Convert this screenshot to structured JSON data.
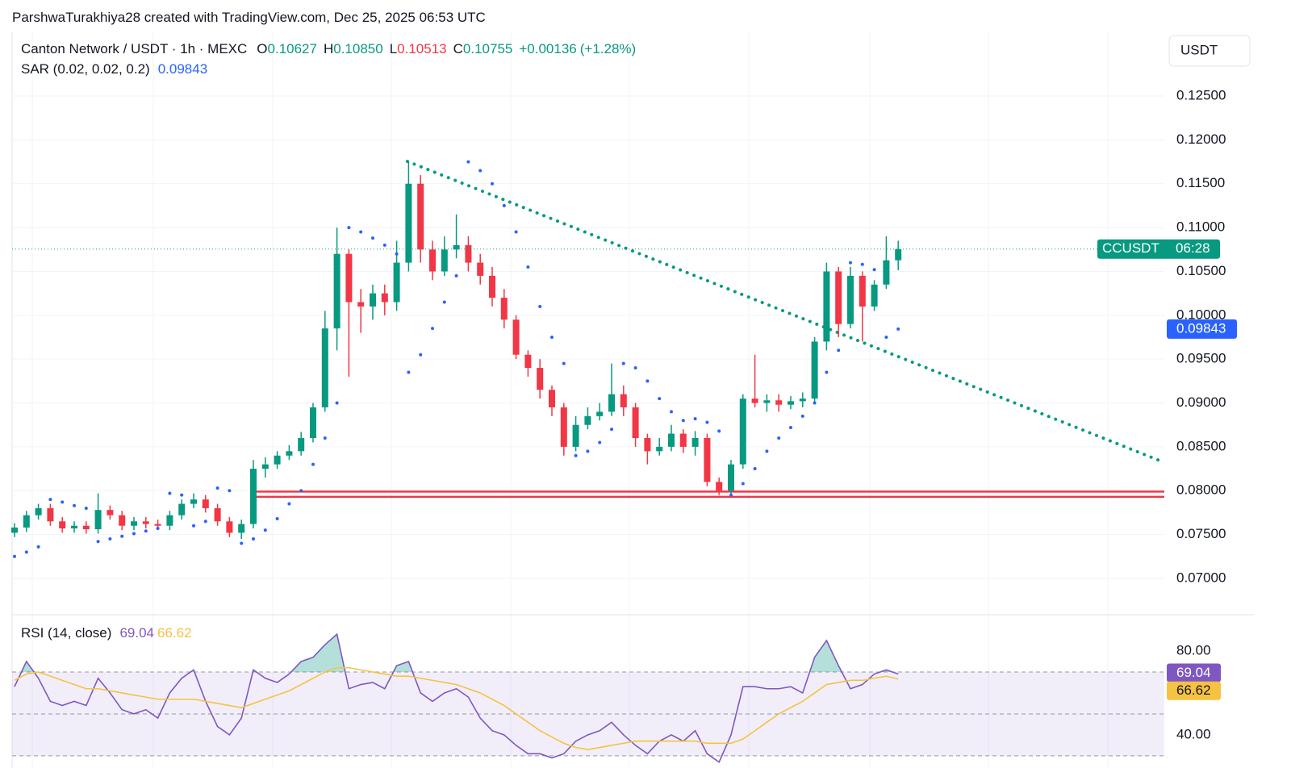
{
  "header": {
    "attribution": "ParshwaTurakhiya28 created with TradingView.com, Dec 25, 2025 06:53 UTC"
  },
  "chart_data": [
    {
      "type": "candlestick",
      "title": "Canton Network / USDT · 1h · MEXC",
      "symbol": "CCUSDT",
      "countdown": "06:28",
      "currency": "USDT",
      "ohlc_legend": [
        {
          "key": "O",
          "value": 0.10627,
          "label": "0.10627"
        },
        {
          "key": "H",
          "value": 0.1085,
          "label": "0.10850"
        },
        {
          "key": "L",
          "value": 0.10513,
          "label": "0.10513"
        },
        {
          "key": "C",
          "value": 0.10755,
          "label": "0.10755"
        }
      ],
      "change": {
        "value": 0.00136,
        "label": "+0.00136"
      },
      "change_pct": {
        "value": 1.28,
        "label": "(+1.28%)"
      },
      "up_color": "#089981",
      "down_color": "#f23645",
      "open": [
        0.0752,
        0.0758,
        0.0772,
        0.078,
        0.0765,
        0.0757,
        0.076,
        0.0756,
        0.0778,
        0.0772,
        0.076,
        0.0765,
        0.0762,
        0.076,
        0.0772,
        0.0785,
        0.079,
        0.078,
        0.0765,
        0.0752,
        0.0762,
        0.0825,
        0.083,
        0.084,
        0.0845,
        0.086,
        0.0895,
        0.0985,
        0.107,
        0.1015,
        0.101,
        0.1025,
        0.1015,
        0.106,
        0.115,
        0.1075,
        0.105,
        0.1075,
        0.108,
        0.106,
        0.1045,
        0.102,
        0.0995,
        0.0955,
        0.094,
        0.0915,
        0.0895,
        0.085,
        0.0875,
        0.0885,
        0.089,
        0.091,
        0.0895,
        0.086,
        0.0845,
        0.085,
        0.0865,
        0.085,
        0.086,
        0.081,
        0.08,
        0.083,
        0.0905,
        0.09,
        0.0903,
        0.0898,
        0.0902,
        0.0905,
        0.097,
        0.105,
        0.099,
        0.1045,
        0.101,
        0.1035,
        0.10627
      ],
      "high": [
        0.0763,
        0.0777,
        0.0785,
        0.0785,
        0.077,
        0.0765,
        0.0765,
        0.0797,
        0.0783,
        0.0777,
        0.077,
        0.077,
        0.0767,
        0.0777,
        0.079,
        0.0797,
        0.0795,
        0.0785,
        0.077,
        0.0767,
        0.0835,
        0.0838,
        0.0845,
        0.0852,
        0.0867,
        0.09,
        0.1005,
        0.11,
        0.1075,
        0.103,
        0.1035,
        0.1035,
        0.1085,
        0.1175,
        0.116,
        0.1085,
        0.109,
        0.1115,
        0.109,
        0.107,
        0.1055,
        0.103,
        0.1,
        0.096,
        0.095,
        0.092,
        0.09,
        0.0885,
        0.0895,
        0.09,
        0.0945,
        0.092,
        0.09,
        0.0865,
        0.086,
        0.0875,
        0.087,
        0.0868,
        0.0865,
        0.0815,
        0.0835,
        0.091,
        0.0955,
        0.091,
        0.091,
        0.0908,
        0.0912,
        0.0975,
        0.106,
        0.1055,
        0.1055,
        0.105,
        0.104,
        0.109,
        0.1085
      ],
      "low": [
        0.0747,
        0.0753,
        0.0767,
        0.076,
        0.0752,
        0.0752,
        0.0751,
        0.0751,
        0.0767,
        0.0755,
        0.0755,
        0.0757,
        0.0755,
        0.0755,
        0.0767,
        0.078,
        0.0775,
        0.076,
        0.0747,
        0.0745,
        0.0757,
        0.0815,
        0.0825,
        0.0835,
        0.084,
        0.0855,
        0.089,
        0.096,
        0.093,
        0.098,
        0.0995,
        0.1,
        0.1005,
        0.105,
        0.106,
        0.104,
        0.1045,
        0.1065,
        0.105,
        0.1035,
        0.101,
        0.0985,
        0.095,
        0.093,
        0.0905,
        0.0885,
        0.084,
        0.0845,
        0.087,
        0.088,
        0.0885,
        0.0885,
        0.085,
        0.083,
        0.084,
        0.0845,
        0.0843,
        0.084,
        0.0805,
        0.0795,
        0.0795,
        0.0825,
        0.0895,
        0.089,
        0.089,
        0.0893,
        0.0895,
        0.09,
        0.096,
        0.0975,
        0.0985,
        0.097,
        0.1005,
        0.103,
        0.10513
      ],
      "close": [
        0.0758,
        0.0772,
        0.078,
        0.0765,
        0.0757,
        0.076,
        0.0756,
        0.0778,
        0.0772,
        0.076,
        0.0765,
        0.0762,
        0.076,
        0.0772,
        0.0785,
        0.079,
        0.078,
        0.0765,
        0.0752,
        0.0762,
        0.0825,
        0.083,
        0.084,
        0.0845,
        0.086,
        0.0895,
        0.0985,
        0.107,
        0.1015,
        0.101,
        0.1025,
        0.1015,
        0.106,
        0.115,
        0.1075,
        0.105,
        0.1075,
        0.108,
        0.106,
        0.1045,
        0.102,
        0.0995,
        0.0955,
        0.094,
        0.0915,
        0.0895,
        0.085,
        0.0875,
        0.0885,
        0.089,
        0.091,
        0.0895,
        0.086,
        0.0845,
        0.085,
        0.0865,
        0.085,
        0.086,
        0.081,
        0.08,
        0.083,
        0.0905,
        0.09,
        0.0903,
        0.0898,
        0.0902,
        0.0905,
        0.097,
        0.105,
        0.099,
        0.1045,
        0.101,
        0.1035,
        0.10627,
        0.10755
      ],
      "sar": {
        "name": "SAR (0.02, 0.02, 0.2)",
        "color": "#2962ff",
        "values": [
          0.0725,
          0.073,
          0.0736,
          0.079,
          0.0787,
          0.0783,
          0.078,
          0.0742,
          0.0745,
          0.0748,
          0.0751,
          0.0754,
          0.0757,
          0.0797,
          0.0795,
          0.076,
          0.0765,
          0.0803,
          0.08,
          0.074,
          0.0745,
          0.0755,
          0.0768,
          0.0785,
          0.08,
          0.083,
          0.086,
          0.09,
          0.11,
          0.1095,
          0.1088,
          0.108,
          0.107,
          0.0935,
          0.0955,
          0.0985,
          0.1015,
          0.1045,
          0.1175,
          0.1165,
          0.115,
          0.1125,
          0.1095,
          0.1055,
          0.101,
          0.0975,
          0.0945,
          0.084,
          0.0845,
          0.0855,
          0.087,
          0.0945,
          0.094,
          0.0925,
          0.0905,
          0.089,
          0.088,
          0.0882,
          0.0878,
          0.0868,
          0.0795,
          0.0808,
          0.0825,
          0.0845,
          0.086,
          0.0872,
          0.0885,
          0.09,
          0.0935,
          0.096,
          0.106,
          0.1058,
          0.1052,
          0.0975,
          0.09843
        ]
      },
      "trendline": {
        "color": "#089981",
        "start": [
          32.9,
          0.11755
        ],
        "end": [
          95.9,
          0.08343
        ]
      },
      "support": {
        "color": "#f23645",
        "start": 20,
        "levels": [
          0.0799,
          0.0793
        ]
      },
      "ylim": [
        0.06604,
        0.13227
      ],
      "yticks": [
        {
          "value": 0.07,
          "label": "0.07000"
        },
        {
          "value": 0.075,
          "label": "0.07500"
        },
        {
          "value": 0.08,
          "label": "0.08000"
        },
        {
          "value": 0.085,
          "label": "0.08500"
        },
        {
          "value": 0.09,
          "label": "0.09000"
        },
        {
          "value": 0.095,
          "label": "0.09500"
        },
        {
          "value": 0.1,
          "label": "0.10000"
        },
        {
          "value": 0.105,
          "label": "0.10500"
        },
        {
          "value": 0.11,
          "label": "0.11000"
        },
        {
          "value": 0.115,
          "label": "0.11500"
        },
        {
          "value": 0.12,
          "label": "0.12000"
        },
        {
          "value": 0.125,
          "label": "0.12500"
        }
      ],
      "grid": true
    },
    {
      "type": "line",
      "title": "RSI (14, close)",
      "series": [
        {
          "color": "#7e57c2",
          "values": [
            63,
            75,
            67,
            56,
            54,
            56,
            54,
            67,
            60,
            52,
            50,
            52,
            48,
            60,
            67,
            71,
            56,
            44,
            40,
            48,
            71,
            67,
            65,
            69,
            75,
            77,
            83,
            88,
            62,
            64,
            65,
            62,
            73,
            75,
            60,
            56,
            60,
            62,
            58,
            48,
            42,
            40,
            35,
            31,
            31,
            29,
            31,
            37,
            40,
            42,
            46,
            40,
            35,
            31,
            37,
            40,
            37,
            42,
            31,
            27,
            40,
            63,
            63,
            62,
            62,
            63,
            60,
            77,
            85,
            73,
            62,
            64,
            69,
            71,
            69.04
          ]
        },
        {
          "color": "#f5c242",
          "values": [
            66,
            69,
            70,
            68,
            66,
            64,
            62,
            62,
            61,
            60,
            59,
            58,
            57,
            57,
            57,
            57,
            56,
            55,
            54,
            53,
            55,
            57,
            59,
            61,
            64,
            67,
            70,
            72,
            72,
            71,
            70,
            69,
            68,
            68,
            67,
            66,
            65,
            64,
            62,
            60,
            57,
            54,
            50,
            46,
            42,
            39,
            36,
            34,
            33,
            34,
            35,
            36,
            37,
            37,
            37,
            37,
            37,
            37,
            36,
            36,
            36,
            38,
            42,
            46,
            50,
            53,
            56,
            60,
            64,
            65,
            66,
            66,
            67,
            68,
            66.62
          ]
        }
      ],
      "bands": {
        "upper": 70,
        "middle": 50,
        "lower": 30,
        "fill": "#7e57c2",
        "overbought_fill": "#089981"
      },
      "ylim": [
        24.2,
        97.3
      ],
      "yticks": [
        {
          "value": 40,
          "label": "40.00"
        },
        {
          "value": 80,
          "label": "80.00"
        }
      ]
    }
  ]
}
